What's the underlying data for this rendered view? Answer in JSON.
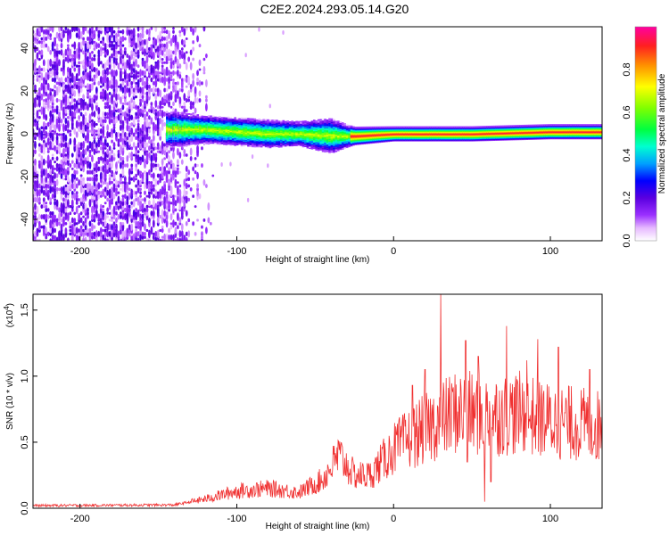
{
  "title": "C2E2.2024.293.05.14.G20",
  "chart_data": [
    {
      "type": "heatmap",
      "name": "spectrogram",
      "xlabel": "Height of straight line (km)",
      "ylabel": "Frequency (Hz)",
      "xlim": [
        -230,
        133
      ],
      "ylim": [
        -50,
        50
      ],
      "xticks": [
        -200,
        -100,
        0,
        100
      ],
      "yticks": [
        -40,
        -20,
        0,
        20,
        40
      ],
      "ridge_profile": [
        {
          "x": -140,
          "center": 2,
          "spread": 5
        },
        {
          "x": -120,
          "center": 2,
          "spread": 4
        },
        {
          "x": -100,
          "center": 1,
          "spread": 4
        },
        {
          "x": -80,
          "center": 0,
          "spread": 4
        },
        {
          "x": -60,
          "center": 0,
          "spread": 3.5
        },
        {
          "x": -40,
          "center": -1,
          "spread": 5
        },
        {
          "x": -25,
          "center": -1,
          "spread": 2.5
        },
        {
          "x": 0,
          "center": 0,
          "spread": 2
        },
        {
          "x": 50,
          "center": 0,
          "spread": 2
        },
        {
          "x": 100,
          "center": 1,
          "spread": 2
        },
        {
          "x": 133,
          "center": 1,
          "spread": 2
        }
      ],
      "colorbar": {
        "label": "Normalized spectral amplitude",
        "range": [
          0,
          1
        ],
        "ticks": [
          "0.0",
          "0.2",
          "0.4",
          "0.6",
          "0.8"
        ]
      }
    },
    {
      "type": "line",
      "name": "snr",
      "xlabel": "Height of straight line (km)",
      "ylabel": "SNR (10 * v/v)",
      "scale_note": "(x10",
      "scale_exp": "4",
      "scale_close": ")",
      "xlim": [
        -230,
        133
      ],
      "ylim": [
        0,
        1.62
      ],
      "xticks": [
        -200,
        -100,
        0,
        100
      ],
      "yticks": [
        "0.0",
        "0.5",
        "1.0",
        "1.5"
      ],
      "color": "#f03030",
      "trend": [
        {
          "x": -230,
          "y": 0.02
        },
        {
          "x": -140,
          "y": 0.025
        },
        {
          "x": -120,
          "y": 0.07
        },
        {
          "x": -100,
          "y": 0.13
        },
        {
          "x": -80,
          "y": 0.15
        },
        {
          "x": -60,
          "y": 0.12
        },
        {
          "x": -45,
          "y": 0.22
        },
        {
          "x": -35,
          "y": 0.4
        },
        {
          "x": -25,
          "y": 0.25
        },
        {
          "x": -15,
          "y": 0.25
        },
        {
          "x": 0,
          "y": 0.45
        },
        {
          "x": 20,
          "y": 0.6
        },
        {
          "x": 40,
          "y": 0.73
        },
        {
          "x": 60,
          "y": 0.7
        },
        {
          "x": 80,
          "y": 0.72
        },
        {
          "x": 100,
          "y": 0.66
        },
        {
          "x": 133,
          "y": 0.62
        }
      ],
      "peaks": [
        {
          "x": 30,
          "y": 1.62
        },
        {
          "x": 72,
          "y": 1.38
        },
        {
          "x": 46,
          "y": 1.27
        },
        {
          "x": 54,
          "y": 1.15
        },
        {
          "x": 92,
          "y": 1.28
        },
        {
          "x": 105,
          "y": 1.22
        },
        {
          "x": 20,
          "y": 1.05
        },
        {
          "x": 12,
          "y": 0.93
        },
        {
          "x": 125,
          "y": 1.05
        },
        {
          "x": 85,
          "y": 1.12
        }
      ],
      "dips": [
        {
          "x": 58,
          "y": 0.05
        },
        {
          "x": 62,
          "y": 0.2
        },
        {
          "x": 47,
          "y": 0.35
        }
      ]
    }
  ]
}
